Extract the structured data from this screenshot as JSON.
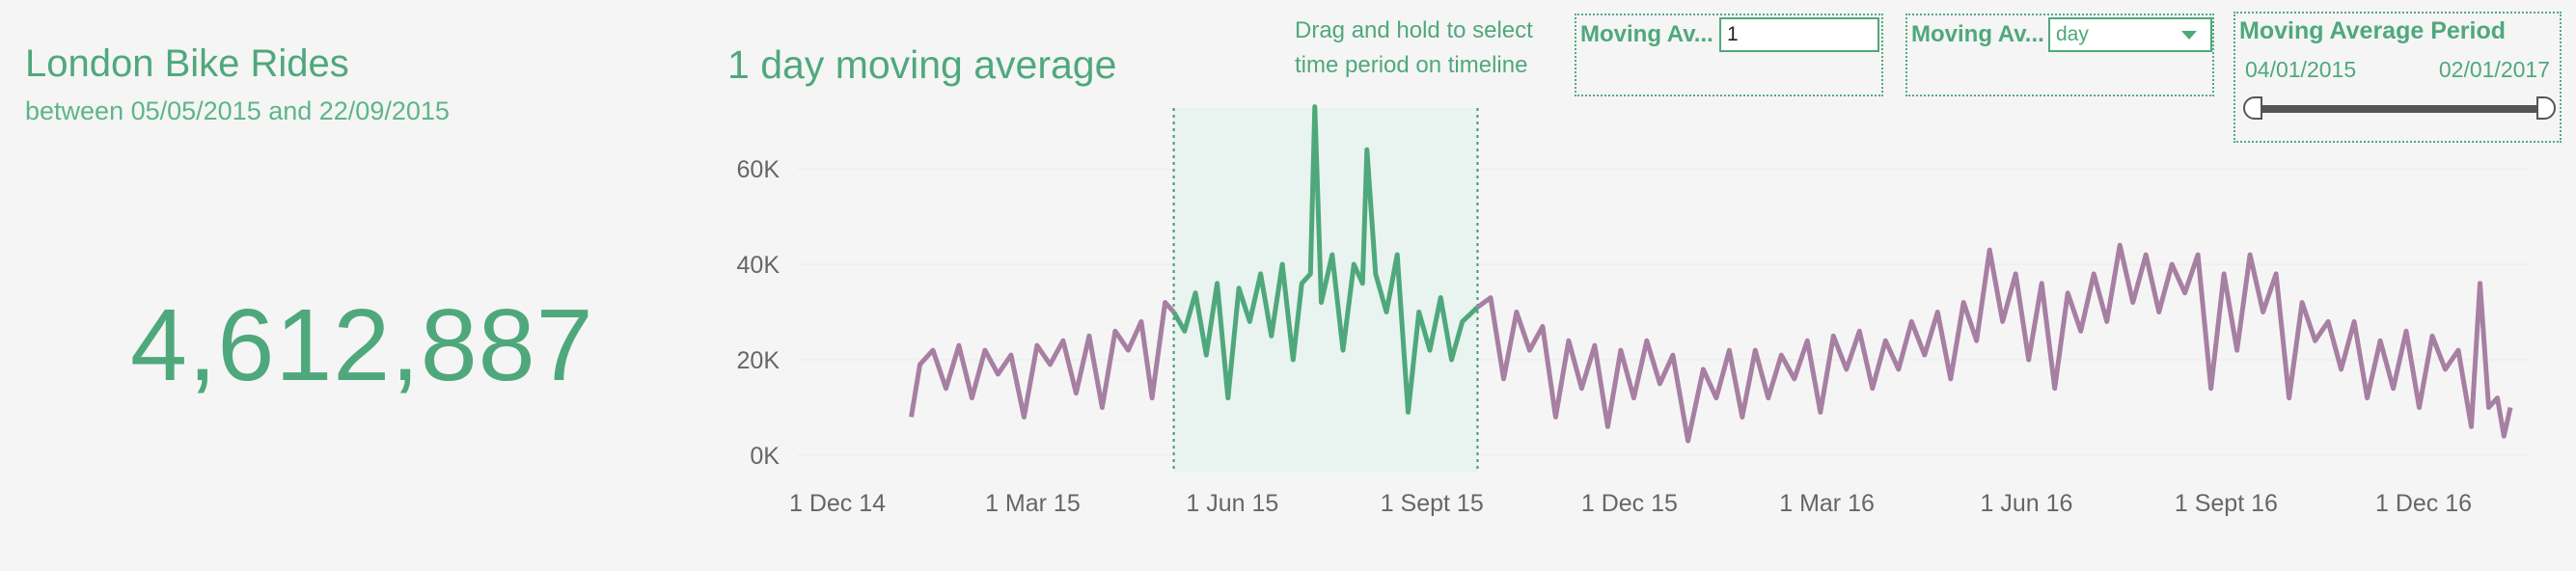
{
  "summary": {
    "title": "London Bike Rides",
    "subtitle": "between 05/05/2015 and 22/09/2015",
    "total_rides": "4,612,887"
  },
  "chart_header": {
    "title": "1 day moving average",
    "instruction_line1": "Drag and hold to select",
    "instruction_line2": "time period on timeline"
  },
  "parameters": {
    "moving_avg_value": {
      "label": "Moving Av...",
      "value": "1"
    },
    "moving_avg_unit": {
      "label": "Moving Av...",
      "value": "day"
    },
    "period": {
      "title": "Moving Average Period",
      "start": "04/01/2015",
      "end": "02/01/2017"
    }
  },
  "colors": {
    "accent": "#4fa87c",
    "series_outside": "#a77fa2",
    "selection_fill": "#e9f3ef"
  },
  "chart_data": {
    "type": "line",
    "title": "1 day moving average",
    "xlabel": "",
    "ylabel": "",
    "ylim": [
      0,
      75000
    ],
    "yticks": [
      "0K",
      "20K",
      "40K",
      "60K"
    ],
    "xticks": [
      "1 Dec 14",
      "1 Mar 15",
      "1 Jun 15",
      "1 Sept 15",
      "1 Dec 15",
      "1 Mar 16",
      "1 Jun 16",
      "1 Sept 16",
      "1 Dec 16"
    ],
    "x_range": [
      "2014-12-01",
      "2017-01-10"
    ],
    "selection": [
      "2015-05-05",
      "2015-09-22"
    ],
    "grid": "horizontal",
    "series": [
      {
        "values": [
          [
            "2015-01-04",
            8000
          ],
          [
            "2015-01-08",
            19000
          ],
          [
            "2015-01-14",
            22000
          ],
          [
            "2015-01-20",
            14000
          ],
          [
            "2015-01-26",
            23000
          ],
          [
            "2015-02-01",
            12000
          ],
          [
            "2015-02-07",
            22000
          ],
          [
            "2015-02-13",
            17000
          ],
          [
            "2015-02-19",
            21000
          ],
          [
            "2015-02-25",
            8000
          ],
          [
            "2015-03-03",
            23000
          ],
          [
            "2015-03-09",
            19000
          ],
          [
            "2015-03-15",
            24000
          ],
          [
            "2015-03-21",
            13000
          ],
          [
            "2015-03-27",
            25000
          ],
          [
            "2015-04-02",
            10000
          ],
          [
            "2015-04-08",
            26000
          ],
          [
            "2015-04-14",
            22000
          ],
          [
            "2015-04-20",
            28000
          ],
          [
            "2015-04-25",
            12000
          ],
          [
            "2015-05-01",
            32000
          ],
          [
            "2015-05-05",
            30000
          ],
          [
            "2015-05-10",
            26000
          ],
          [
            "2015-05-15",
            34000
          ],
          [
            "2015-05-20",
            21000
          ],
          [
            "2015-05-25",
            36000
          ],
          [
            "2015-05-30",
            12000
          ],
          [
            "2015-06-04",
            35000
          ],
          [
            "2015-06-09",
            28000
          ],
          [
            "2015-06-14",
            38000
          ],
          [
            "2015-06-19",
            25000
          ],
          [
            "2015-06-24",
            40000
          ],
          [
            "2015-06-29",
            20000
          ],
          [
            "2015-07-03",
            36000
          ],
          [
            "2015-07-07",
            38000
          ],
          [
            "2015-07-09",
            73000
          ],
          [
            "2015-07-12",
            32000
          ],
          [
            "2015-07-17",
            42000
          ],
          [
            "2015-07-22",
            22000
          ],
          [
            "2015-07-27",
            40000
          ],
          [
            "2015-07-31",
            36000
          ],
          [
            "2015-08-02",
            64000
          ],
          [
            "2015-08-06",
            38000
          ],
          [
            "2015-08-11",
            30000
          ],
          [
            "2015-08-16",
            42000
          ],
          [
            "2015-08-21",
            9000
          ],
          [
            "2015-08-26",
            30000
          ],
          [
            "2015-08-31",
            22000
          ],
          [
            "2015-09-05",
            33000
          ],
          [
            "2015-09-10",
            20000
          ],
          [
            "2015-09-15",
            28000
          ],
          [
            "2015-09-22",
            31000
          ],
          [
            "2015-09-28",
            33000
          ],
          [
            "2015-10-04",
            16000
          ],
          [
            "2015-10-10",
            30000
          ],
          [
            "2015-10-16",
            22000
          ],
          [
            "2015-10-22",
            27000
          ],
          [
            "2015-10-28",
            8000
          ],
          [
            "2015-11-03",
            24000
          ],
          [
            "2015-11-09",
            14000
          ],
          [
            "2015-11-15",
            23000
          ],
          [
            "2015-11-21",
            6000
          ],
          [
            "2015-11-27",
            22000
          ],
          [
            "2015-12-03",
            12000
          ],
          [
            "2015-12-09",
            24000
          ],
          [
            "2015-12-15",
            15000
          ],
          [
            "2015-12-21",
            21000
          ],
          [
            "2015-12-28",
            3000
          ],
          [
            "2016-01-04",
            18000
          ],
          [
            "2016-01-10",
            12000
          ],
          [
            "2016-01-16",
            22000
          ],
          [
            "2016-01-22",
            8000
          ],
          [
            "2016-01-28",
            22000
          ],
          [
            "2016-02-03",
            12000
          ],
          [
            "2016-02-09",
            21000
          ],
          [
            "2016-02-15",
            16000
          ],
          [
            "2016-02-21",
            24000
          ],
          [
            "2016-02-27",
            9000
          ],
          [
            "2016-03-04",
            25000
          ],
          [
            "2016-03-10",
            18000
          ],
          [
            "2016-03-16",
            26000
          ],
          [
            "2016-03-22",
            14000
          ],
          [
            "2016-03-28",
            24000
          ],
          [
            "2016-04-03",
            18000
          ],
          [
            "2016-04-09",
            28000
          ],
          [
            "2016-04-15",
            21000
          ],
          [
            "2016-04-21",
            30000
          ],
          [
            "2016-04-27",
            16000
          ],
          [
            "2016-05-03",
            32000
          ],
          [
            "2016-05-09",
            24000
          ],
          [
            "2016-05-15",
            43000
          ],
          [
            "2016-05-21",
            28000
          ],
          [
            "2016-05-27",
            38000
          ],
          [
            "2016-06-02",
            20000
          ],
          [
            "2016-06-08",
            36000
          ],
          [
            "2016-06-14",
            14000
          ],
          [
            "2016-06-20",
            34000
          ],
          [
            "2016-06-26",
            26000
          ],
          [
            "2016-07-02",
            38000
          ],
          [
            "2016-07-08",
            28000
          ],
          [
            "2016-07-14",
            44000
          ],
          [
            "2016-07-20",
            32000
          ],
          [
            "2016-07-26",
            42000
          ],
          [
            "2016-08-01",
            30000
          ],
          [
            "2016-08-07",
            40000
          ],
          [
            "2016-08-13",
            34000
          ],
          [
            "2016-08-19",
            42000
          ],
          [
            "2016-08-25",
            14000
          ],
          [
            "2016-08-31",
            38000
          ],
          [
            "2016-09-06",
            22000
          ],
          [
            "2016-09-12",
            42000
          ],
          [
            "2016-09-18",
            30000
          ],
          [
            "2016-09-24",
            38000
          ],
          [
            "2016-09-30",
            12000
          ],
          [
            "2016-10-06",
            32000
          ],
          [
            "2016-10-12",
            24000
          ],
          [
            "2016-10-18",
            28000
          ],
          [
            "2016-10-24",
            18000
          ],
          [
            "2016-10-30",
            28000
          ],
          [
            "2016-11-05",
            12000
          ],
          [
            "2016-11-11",
            24000
          ],
          [
            "2016-11-17",
            14000
          ],
          [
            "2016-11-23",
            26000
          ],
          [
            "2016-11-29",
            10000
          ],
          [
            "2016-12-05",
            25000
          ],
          [
            "2016-12-11",
            18000
          ],
          [
            "2016-12-17",
            22000
          ],
          [
            "2016-12-23",
            6000
          ],
          [
            "2016-12-27",
            36000
          ],
          [
            "2016-12-31",
            10000
          ],
          [
            "2017-01-04",
            12000
          ],
          [
            "2017-01-07",
            4000
          ],
          [
            "2017-01-10",
            10000
          ]
        ]
      }
    ]
  }
}
